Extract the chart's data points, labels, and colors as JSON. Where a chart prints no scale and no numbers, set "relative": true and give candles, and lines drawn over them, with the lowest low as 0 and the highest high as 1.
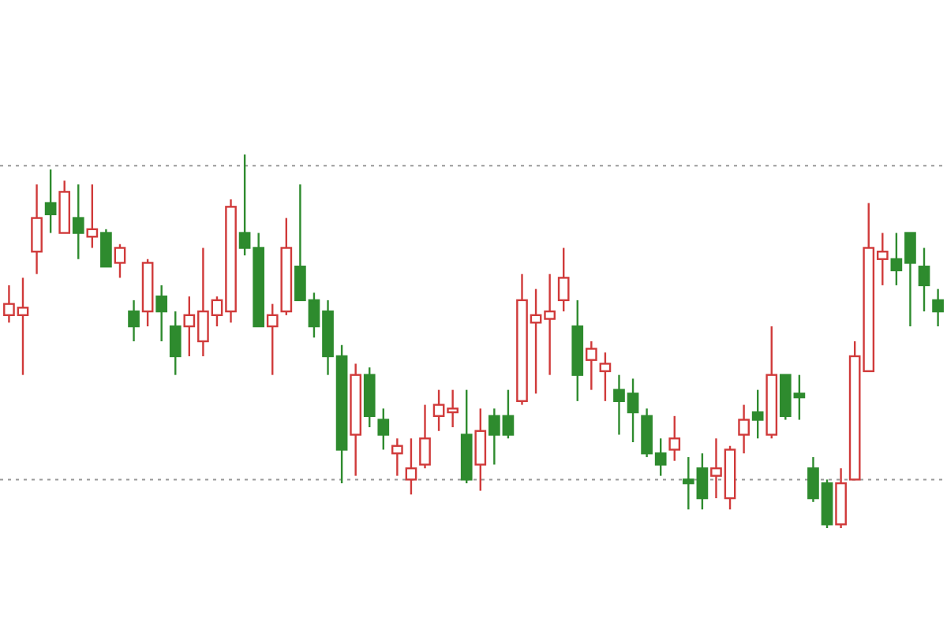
{
  "chart_data": {
    "type": "candlestick",
    "relative": true,
    "categories": [
      null,
      null,
      null,
      null,
      null,
      null,
      null,
      null,
      null,
      null,
      null,
      null,
      null,
      null,
      null,
      null,
      null,
      null,
      null,
      null,
      null,
      null,
      null,
      null,
      null,
      null,
      null,
      null,
      null,
      null,
      null,
      null,
      null,
      null,
      null,
      null,
      null,
      null,
      null,
      null,
      null,
      null,
      null,
      null,
      null,
      null,
      null,
      null,
      null,
      null,
      null,
      null,
      null,
      null,
      null,
      null,
      null,
      null,
      null,
      null,
      null,
      null,
      null,
      null,
      null,
      null,
      null,
      null
    ],
    "ohlc": [
      [
        0.57,
        0.65,
        0.55,
        0.6
      ],
      [
        0.57,
        0.67,
        0.41,
        0.59
      ],
      [
        0.74,
        0.92,
        0.68,
        0.83
      ],
      [
        0.87,
        0.96,
        0.79,
        0.84
      ],
      [
        0.79,
        0.93,
        0.79,
        0.9
      ],
      [
        0.83,
        0.92,
        0.72,
        0.79
      ],
      [
        0.78,
        0.92,
        0.75,
        0.8
      ],
      [
        0.79,
        0.8,
        0.7,
        0.7
      ],
      [
        0.71,
        0.76,
        0.67,
        0.75
      ],
      [
        0.58,
        0.61,
        0.5,
        0.54
      ],
      [
        0.58,
        0.72,
        0.54,
        0.71
      ],
      [
        0.62,
        0.65,
        0.5,
        0.58
      ],
      [
        0.54,
        0.58,
        0.41,
        0.46
      ],
      [
        0.54,
        0.62,
        0.46,
        0.57
      ],
      [
        0.5,
        0.75,
        0.46,
        0.58
      ],
      [
        0.57,
        0.62,
        0.54,
        0.61
      ],
      [
        0.58,
        0.88,
        0.55,
        0.86
      ],
      [
        0.79,
        1,
        0.73,
        0.75
      ],
      [
        0.75,
        0.79,
        0.54,
        0.54
      ],
      [
        0.54,
        0.6,
        0.41,
        0.57
      ],
      [
        0.58,
        0.83,
        0.57,
        0.75
      ],
      [
        0.7,
        0.92,
        0.61,
        0.61
      ],
      [
        0.61,
        0.63,
        0.51,
        0.54
      ],
      [
        0.58,
        0.61,
        0.41,
        0.46
      ],
      [
        0.46,
        0.49,
        0.12,
        0.21
      ],
      [
        0.25,
        0.44,
        0.14,
        0.41
      ],
      [
        0.41,
        0.43,
        0.27,
        0.3
      ],
      [
        0.29,
        0.32,
        0.21,
        0.25
      ],
      [
        0.2,
        0.24,
        0.14,
        0.22
      ],
      [
        0.13,
        0.24,
        0.09,
        0.16
      ],
      [
        0.17,
        0.33,
        0.16,
        0.24
      ],
      [
        0.3,
        0.37,
        0.26,
        0.33
      ],
      [
        0.31,
        0.37,
        0.27,
        0.32
      ],
      [
        0.25,
        0.37,
        0.12,
        0.13
      ],
      [
        0.17,
        0.32,
        0.1,
        0.26
      ],
      [
        0.3,
        0.32,
        0.17,
        0.25
      ],
      [
        0.3,
        0.37,
        0.24,
        0.25
      ],
      [
        0.34,
        0.68,
        0.33,
        0.61
      ],
      [
        0.55,
        0.64,
        0.36,
        0.57
      ],
      [
        0.56,
        0.68,
        0.41,
        0.58
      ],
      [
        0.61,
        0.75,
        0.58,
        0.67
      ],
      [
        0.54,
        0.61,
        0.34,
        0.41
      ],
      [
        0.45,
        0.5,
        0.37,
        0.48
      ],
      [
        0.42,
        0.47,
        0.34,
        0.44
      ],
      [
        0.37,
        0.41,
        0.25,
        0.34
      ],
      [
        0.36,
        0.4,
        0.23,
        0.31
      ],
      [
        0.3,
        0.32,
        0.19,
        0.2
      ],
      [
        0.2,
        0.24,
        0.14,
        0.17
      ],
      [
        0.21,
        0.3,
        0.18,
        0.24
      ],
      [
        0.13,
        0.19,
        0.05,
        0.12
      ],
      [
        0.16,
        0.2,
        0.05,
        0.08
      ],
      [
        0.14,
        0.24,
        0.08,
        0.16
      ],
      [
        0.08,
        0.22,
        0.05,
        0.21
      ],
      [
        0.25,
        0.33,
        0.2,
        0.29
      ],
      [
        0.31,
        0.37,
        0.24,
        0.29
      ],
      [
        0.25,
        0.54,
        0.24,
        0.41
      ],
      [
        0.41,
        0.41,
        0.29,
        0.3
      ],
      [
        0.36,
        0.41,
        0.29,
        0.35
      ],
      [
        0.16,
        0.19,
        0.07,
        0.08
      ],
      [
        0.12,
        0.13,
        0,
        0.01
      ],
      [
        0.01,
        0.16,
        0,
        0.12
      ],
      [
        0.13,
        0.5,
        0.13,
        0.46
      ],
      [
        0.42,
        0.87,
        0.42,
        0.75
      ],
      [
        0.72,
        0.79,
        0.65,
        0.74
      ],
      [
        0.72,
        0.79,
        0.65,
        0.69
      ],
      [
        0.79,
        0.79,
        0.54,
        0.71
      ],
      [
        0.7,
        0.75,
        0.58,
        0.65
      ],
      [
        0.61,
        0.64,
        0.54,
        0.58
      ]
    ],
    "colors": [
      "#d03a3a",
      "#d03a3a",
      "#d03a3a",
      "#2e8b2e",
      "#d03a3a",
      "#2e8b2e",
      "#d03a3a",
      "#2e8b2e",
      "#d03a3a",
      "#2e8b2e",
      "#d03a3a",
      "#2e8b2e",
      "#2e8b2e",
      "#d03a3a",
      "#d03a3a",
      "#d03a3a",
      "#d03a3a",
      "#2e8b2e",
      "#2e8b2e",
      "#d03a3a",
      "#d03a3a",
      "#2e8b2e",
      "#2e8b2e",
      "#2e8b2e",
      "#2e8b2e",
      "#d03a3a",
      "#2e8b2e",
      "#2e8b2e",
      "#d03a3a",
      "#d03a3a",
      "#d03a3a",
      "#d03a3a",
      "#d03a3a",
      "#2e8b2e",
      "#d03a3a",
      "#2e8b2e",
      "#2e8b2e",
      "#d03a3a",
      "#d03a3a",
      "#d03a3a",
      "#d03a3a",
      "#2e8b2e",
      "#d03a3a",
      "#d03a3a",
      "#2e8b2e",
      "#2e8b2e",
      "#2e8b2e",
      "#2e8b2e",
      "#d03a3a",
      "#2e8b2e",
      "#2e8b2e",
      "#d03a3a",
      "#d03a3a",
      "#d03a3a",
      "#2e8b2e",
      "#d03a3a",
      "#2e8b2e",
      "#2e8b2e",
      "#2e8b2e",
      "#2e8b2e",
      "#d03a3a",
      "#d03a3a",
      "#d03a3a",
      "#d03a3a",
      "#2e8b2e",
      "#2e8b2e",
      "#2e8b2e",
      "#2e8b2e"
    ],
    "ref_lines": [
      {
        "axis": "y",
        "value": 0.97,
        "color": "#999999",
        "line_style": "dotted"
      },
      {
        "axis": "y",
        "value": 0.13,
        "color": "#999999",
        "line_style": "dotted"
      }
    ]
  }
}
